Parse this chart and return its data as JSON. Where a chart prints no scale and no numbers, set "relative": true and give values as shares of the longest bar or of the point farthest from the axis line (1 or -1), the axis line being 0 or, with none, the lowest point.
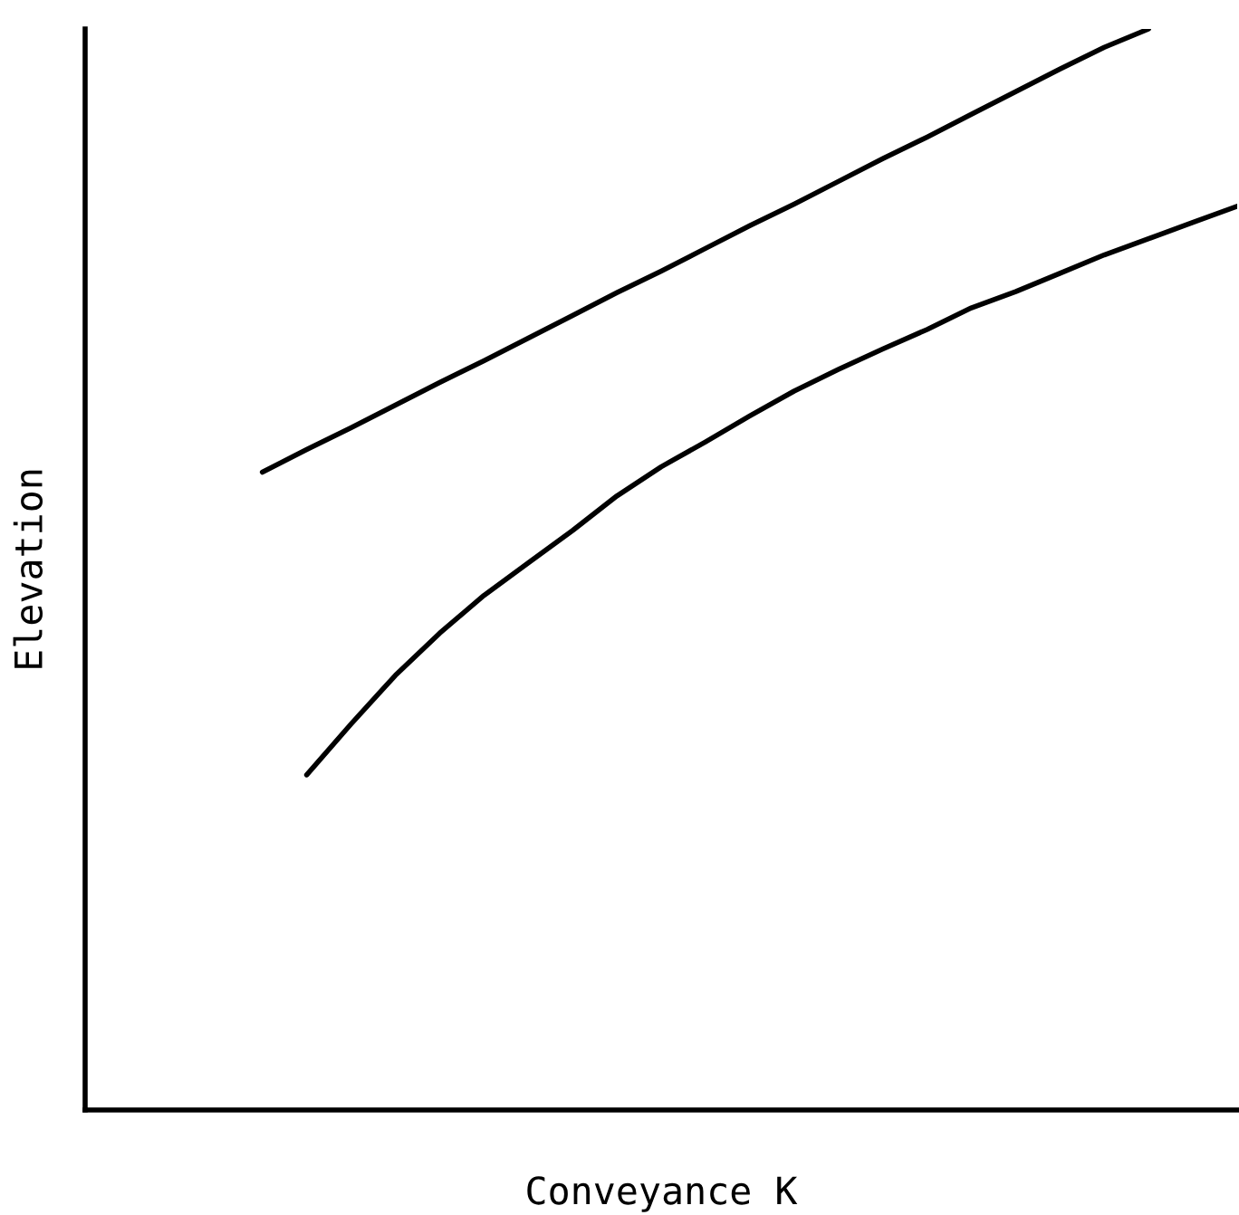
{
  "chart_data": {
    "type": "line",
    "xlabel": "Conveyance K",
    "ylabel": "Elevation",
    "relative": true,
    "tick_labels": false,
    "legend": false,
    "categories": [
      null,
      null,
      null,
      null,
      null,
      null,
      null,
      null,
      null,
      null,
      null,
      null,
      null,
      null,
      null,
      null,
      null,
      null,
      null,
      null,
      null,
      null,
      null,
      null,
      null,
      null,
      null
    ],
    "series": [
      {
        "color": "#000000",
        "values": [
          null,
          null,
          null,
          null,
          0.59,
          0.611,
          0.631,
          0.652,
          0.673,
          0.693,
          0.714,
          0.735,
          0.756,
          0.776,
          0.797,
          0.818,
          0.838,
          0.859,
          0.88,
          0.9,
          0.921,
          0.942,
          0.963,
          0.983,
          1.0,
          null,
          null
        ]
      },
      {
        "color": "#000000",
        "values": [
          null,
          null,
          null,
          null,
          null,
          0.31,
          0.357,
          0.402,
          0.441,
          0.476,
          0.506,
          0.536,
          0.568,
          0.595,
          0.618,
          0.642,
          0.665,
          0.685,
          0.704,
          0.722,
          0.742,
          0.757,
          0.774,
          0.791,
          0.806,
          0.821,
          0.836
        ]
      }
    ]
  }
}
